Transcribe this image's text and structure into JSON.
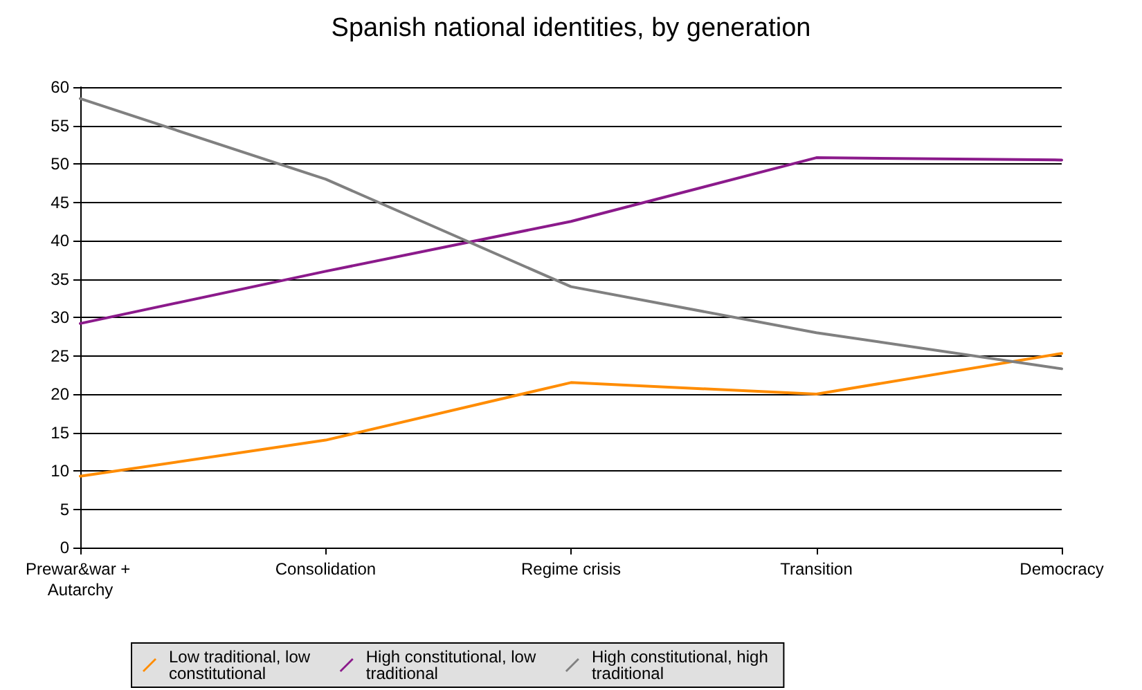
{
  "chart_data": {
    "type": "line",
    "title": "Spanish national identities, by generation",
    "categories": [
      "Prewar&war + Autarchy",
      "Consolidation",
      "Regime crisis",
      "Transition",
      "Democracy"
    ],
    "series": [
      {
        "name": "Low traditional, low constitutional",
        "color": "#ff8c00",
        "values": [
          9.3,
          14,
          21.5,
          20,
          25.3
        ]
      },
      {
        "name": "High constitutional, low traditional",
        "color": "#8b1a8b",
        "values": [
          29.2,
          36,
          42.5,
          50.8,
          50.5
        ]
      },
      {
        "name": "High constitutional, high traditional",
        "color": "#808080",
        "values": [
          58.5,
          48,
          34,
          28,
          23.3
        ]
      }
    ],
    "ylim": [
      0,
      60
    ],
    "yticks": [
      0,
      5,
      10,
      15,
      20,
      25,
      30,
      35,
      40,
      45,
      50,
      55,
      60
    ],
    "grid": "y",
    "legend": "bottom",
    "marker": "none",
    "line_style": "solid"
  }
}
